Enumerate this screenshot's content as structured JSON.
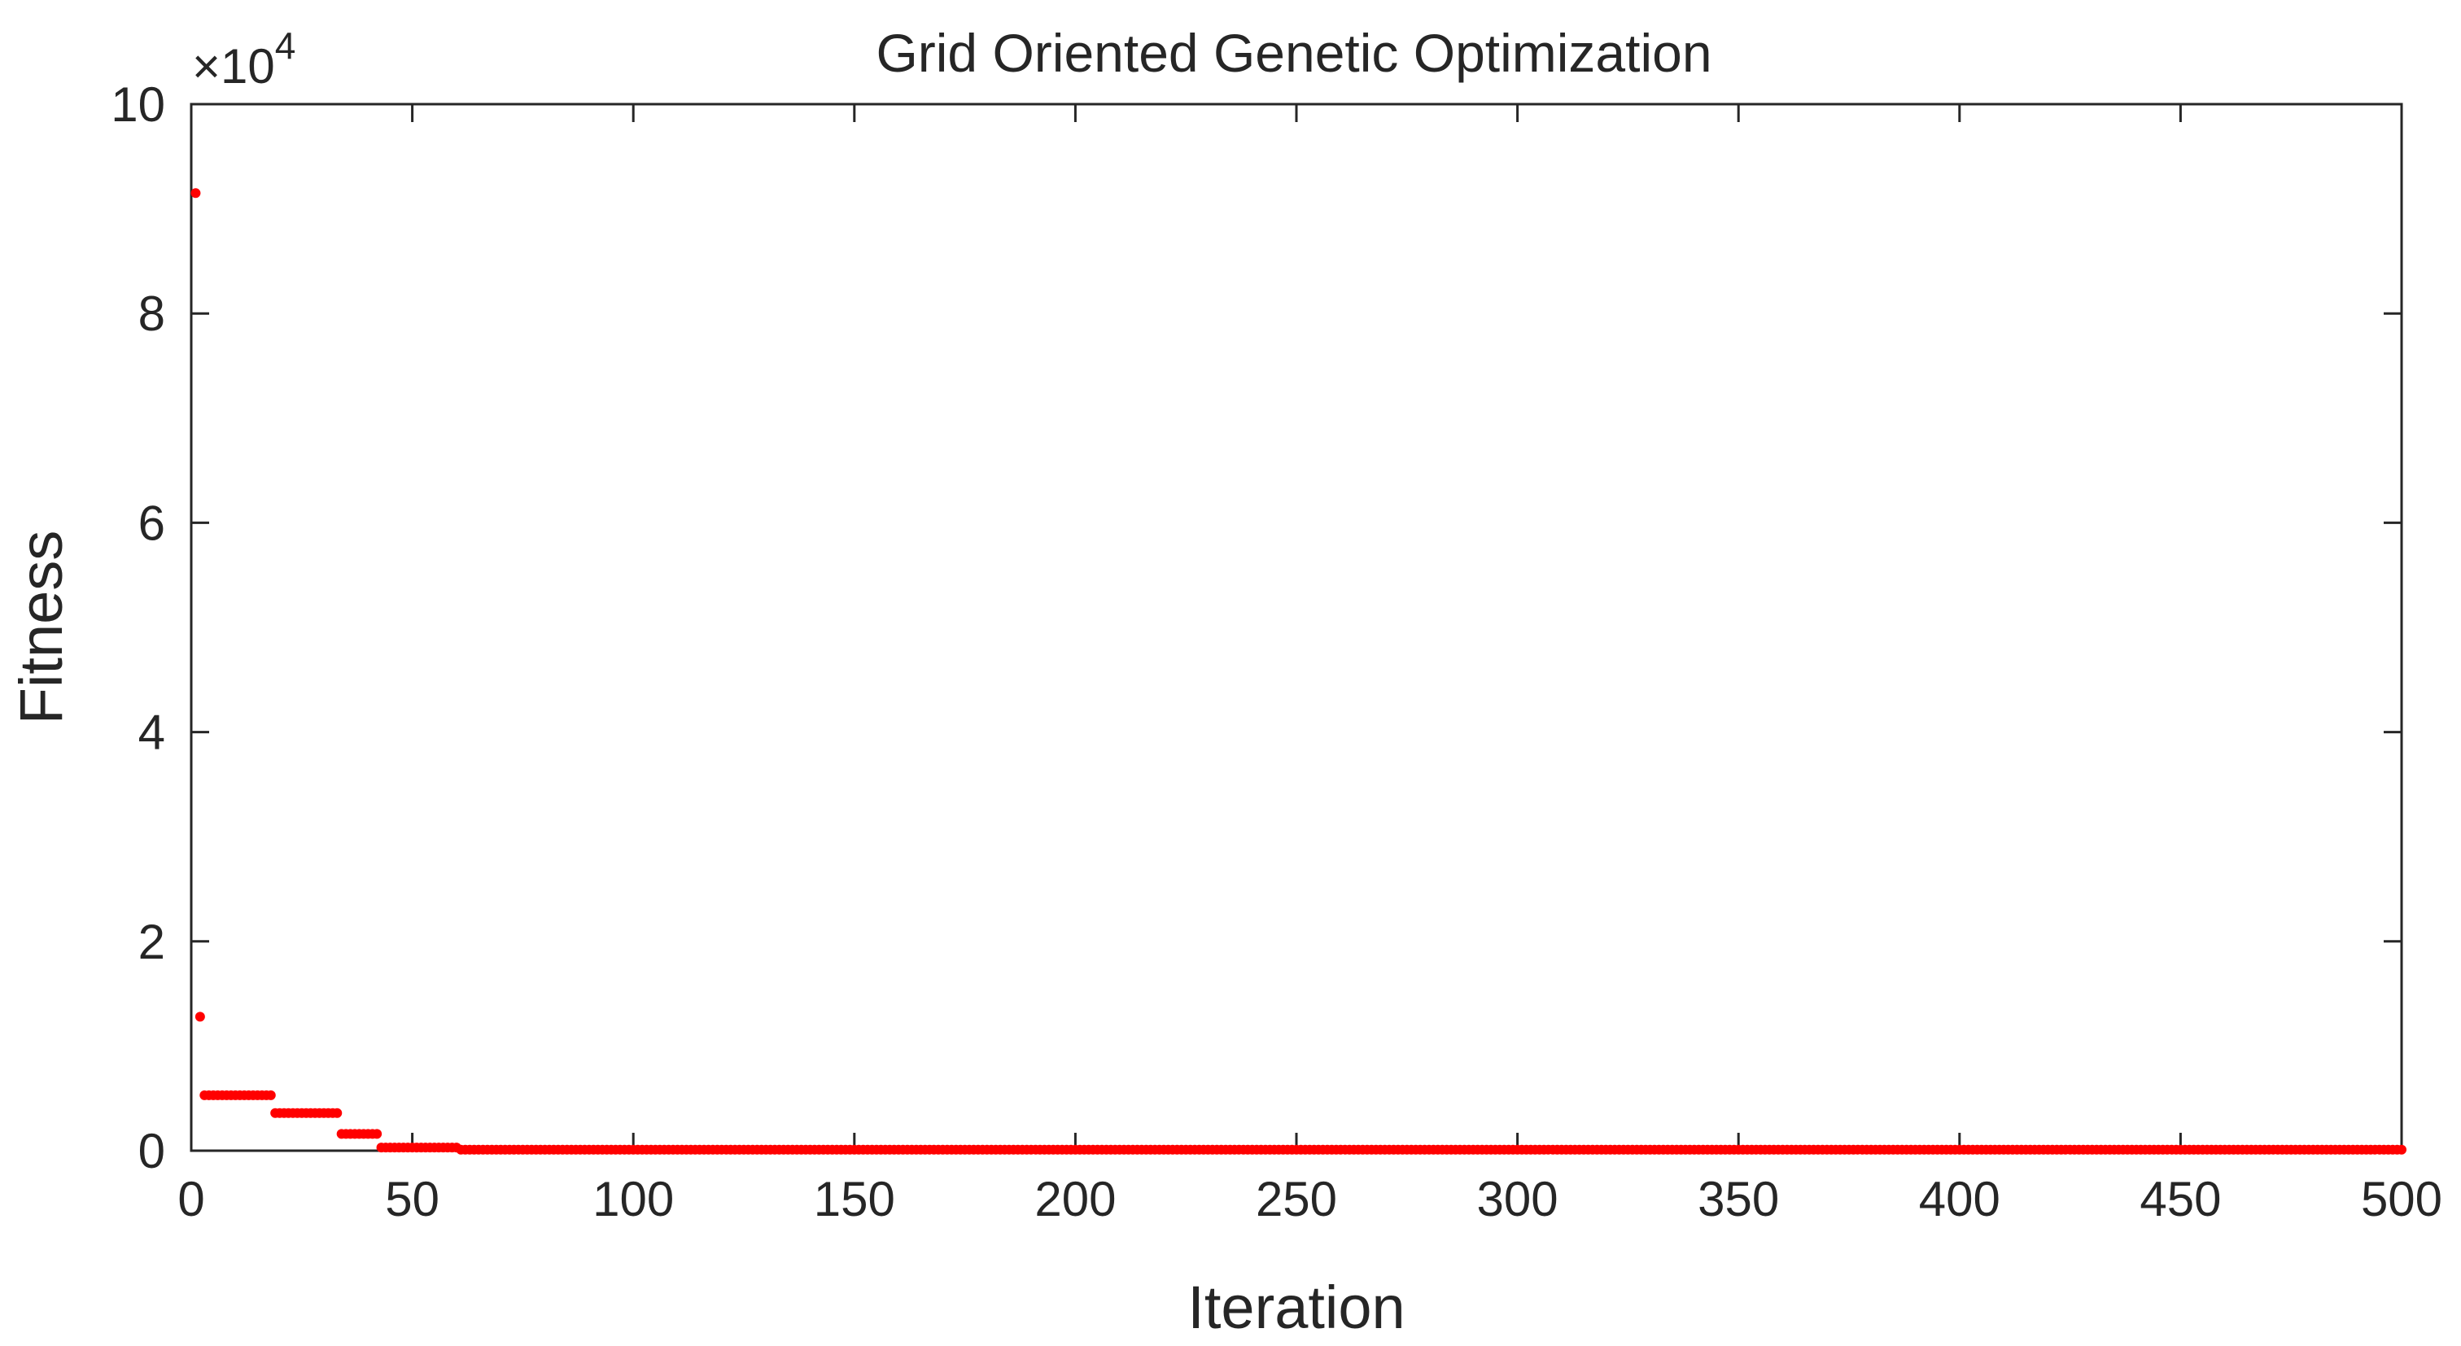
{
  "chart_data": {
    "type": "scatter",
    "title": "Grid Oriented Genetic Optimization",
    "xlabel": "Iteration",
    "ylabel": "Fitness",
    "xlim": [
      0,
      500
    ],
    "ylim": [
      0,
      100000
    ],
    "xticks": [
      0,
      50,
      100,
      150,
      200,
      250,
      300,
      350,
      400,
      450,
      500
    ],
    "yticks": [
      0,
      20000,
      40000,
      60000,
      80000,
      100000
    ],
    "ytick_labels": [
      "0",
      "2",
      "4",
      "6",
      "8",
      "10"
    ],
    "y_exponent_base": "×10",
    "y_exponent_power": "4",
    "grid": false,
    "marker_color": "#ff0000",
    "series": [
      {
        "segments": [
          {
            "x_start": 1,
            "x_end": 1,
            "y": 91500
          },
          {
            "x_start": 2,
            "x_end": 2,
            "y": 12800
          },
          {
            "x_start": 3,
            "x_end": 18,
            "y": 5300
          },
          {
            "x_start": 19,
            "x_end": 33,
            "y": 3600
          },
          {
            "x_start": 34,
            "x_end": 42,
            "y": 1600
          },
          {
            "x_start": 43,
            "x_end": 60,
            "y": 300
          },
          {
            "x_start": 61,
            "x_end": 500,
            "y": 100
          }
        ]
      }
    ]
  }
}
